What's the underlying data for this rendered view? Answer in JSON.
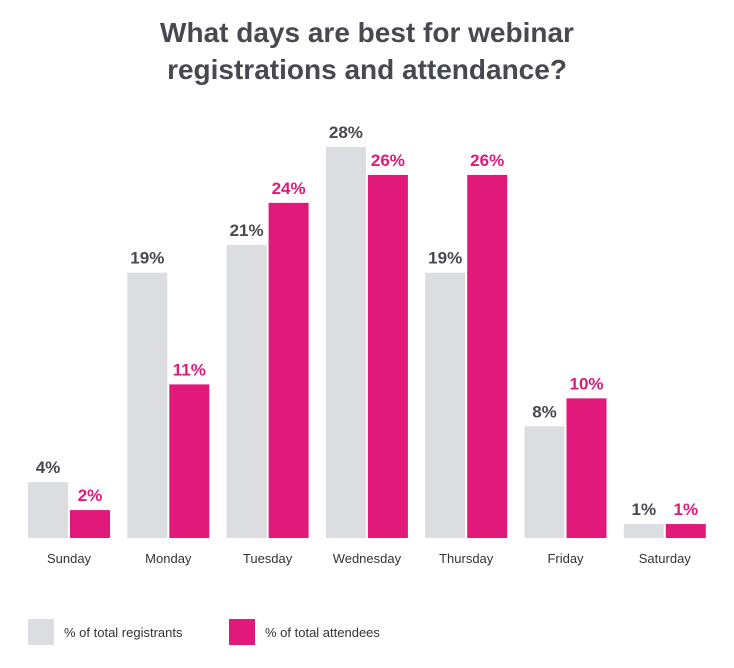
{
  "chart_data": {
    "type": "bar",
    "title_lines": [
      "What days are best for webinar",
      "registrations and attendance?"
    ],
    "categories": [
      "Sunday",
      "Monday",
      "Tuesday",
      "Wednesday",
      "Thursday",
      "Friday",
      "Saturday"
    ],
    "series": [
      {
        "name": "% of total registrants",
        "color": "#dcdde1",
        "label_color": "#484851",
        "values": [
          4,
          19,
          21,
          28,
          19,
          8,
          1
        ]
      },
      {
        "name": "% of total attendees",
        "color": "#e0197a",
        "label_color": "#e0197a",
        "values": [
          2,
          11,
          24,
          26,
          26,
          10,
          1
        ]
      }
    ],
    "value_suffix": "%",
    "ylim": [
      0,
      28
    ],
    "xlabel": "",
    "ylabel": "",
    "grid": false,
    "legend_position": "bottom-left"
  }
}
